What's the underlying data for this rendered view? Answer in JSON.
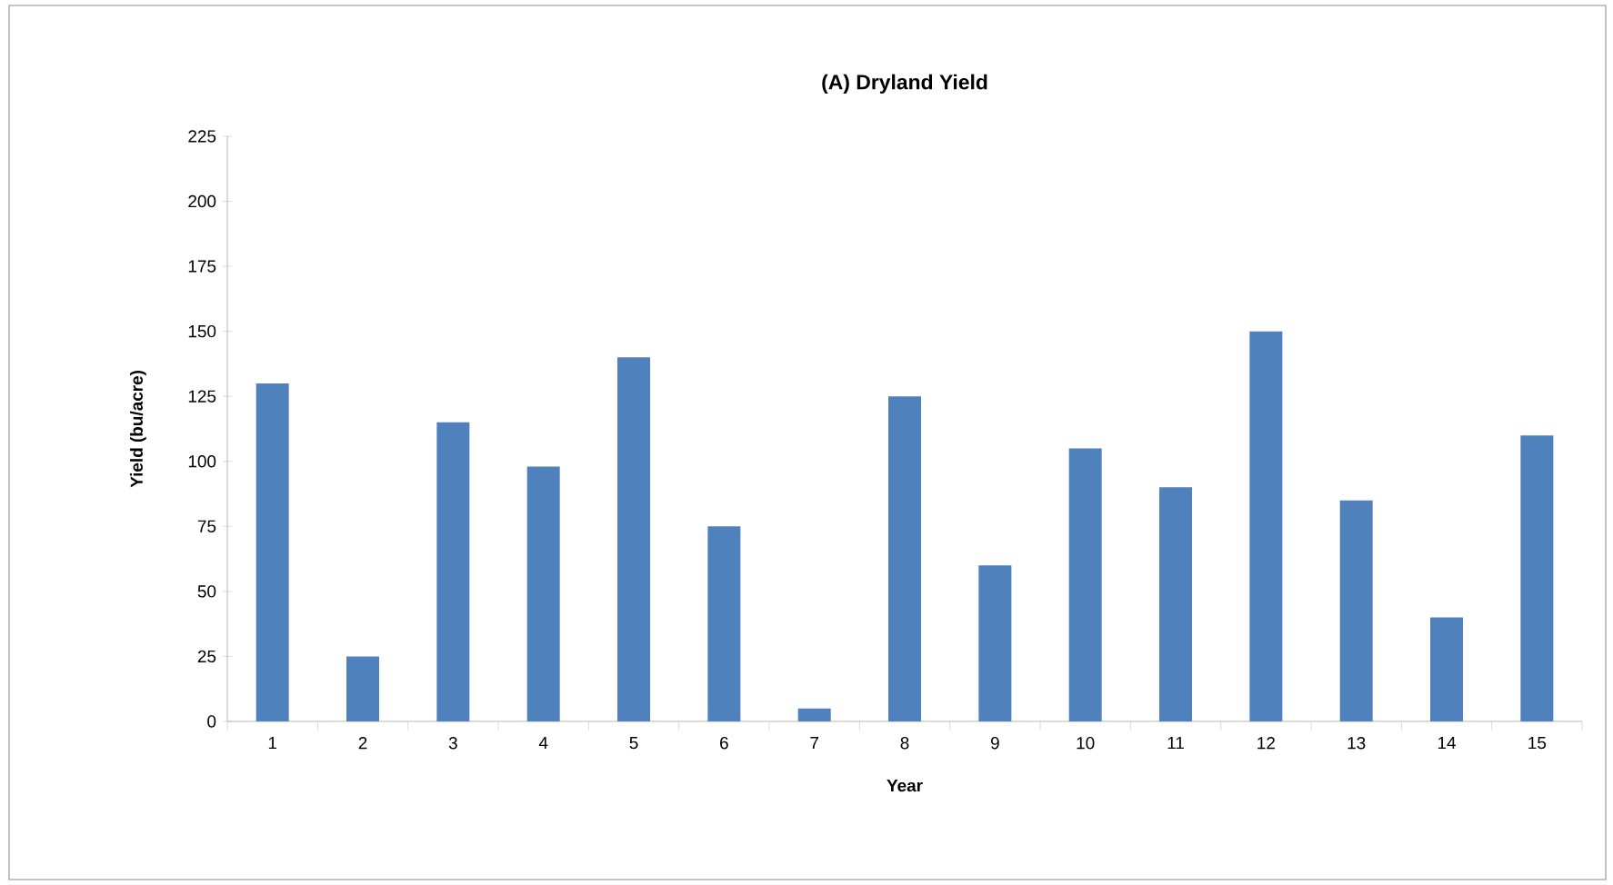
{
  "chart_data": {
    "type": "bar",
    "title": "(A) Dryland Yield",
    "xlabel": "Year",
    "ylabel": "Yield (bu/acre)",
    "categories": [
      "1",
      "2",
      "3",
      "4",
      "5",
      "6",
      "7",
      "8",
      "9",
      "10",
      "11",
      "12",
      "13",
      "14",
      "15"
    ],
    "values": [
      130,
      25,
      115,
      98,
      140,
      75,
      5,
      125,
      60,
      105,
      90,
      150,
      85,
      40,
      110
    ],
    "color": "#4f81bd",
    "ylim": [
      0,
      225
    ],
    "yticks": [
      0,
      25,
      50,
      75,
      100,
      125,
      150,
      175,
      200,
      225
    ],
    "grid": false
  }
}
